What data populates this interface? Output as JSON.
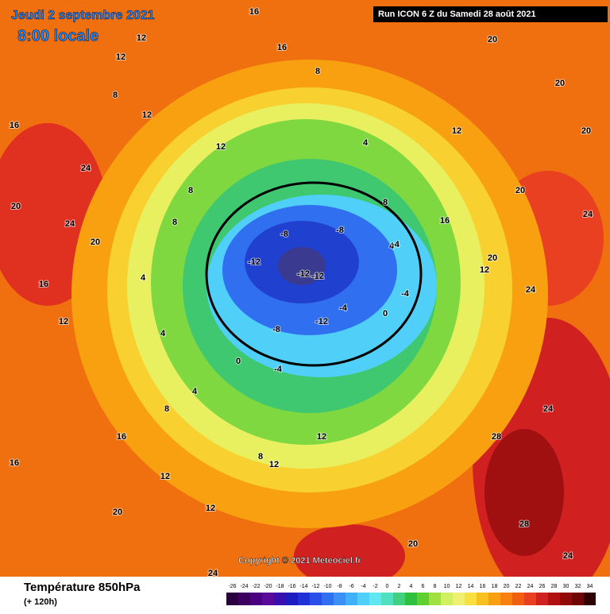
{
  "header": {
    "date": "Jeudi 2 septembre 2021",
    "time": "8:00 locale",
    "run": "Run ICON 6 Z du Samedi 28 août 2021"
  },
  "footer": {
    "title": "Température 850hPa",
    "lead": "(+ 120h)",
    "copyright": "Copyright © 2021 Meteociel.fr"
  },
  "legend": {
    "labels": [
      -26,
      -24,
      -22,
      -20,
      -18,
      -16,
      -14,
      -12,
      -10,
      -8,
      -6,
      -4,
      -2,
      0,
      2,
      4,
      6,
      8,
      10,
      12,
      14,
      16,
      18,
      20,
      22,
      24,
      26,
      28,
      30,
      32,
      34
    ],
    "colors": [
      "#2a0040",
      "#3c0060",
      "#4b0082",
      "#5a0a9a",
      "#3a0fb0",
      "#1c1cc0",
      "#1e32d8",
      "#2850e8",
      "#3070f0",
      "#3c90f5",
      "#40b0f8",
      "#50d0f8",
      "#60e8f0",
      "#50e0c0",
      "#40d080",
      "#30c040",
      "#60d030",
      "#a0e040",
      "#d0f060",
      "#f0f070",
      "#f8e040",
      "#f8c020",
      "#f8a010",
      "#f88010",
      "#f06010",
      "#e84020",
      "#d02020",
      "#b01010",
      "#900a0a",
      "#700505",
      "#300000"
    ]
  },
  "contour_labels": [
    20,
    20,
    20,
    24,
    24,
    24,
    28,
    28,
    24,
    20,
    24,
    20,
    16,
    16,
    12,
    12,
    12,
    12,
    8,
    8,
    4,
    4,
    4,
    8,
    8,
    8,
    12,
    12,
    16,
    16,
    12,
    12,
    20,
    24,
    20,
    24,
    16,
    16,
    12,
    8,
    8,
    4,
    4,
    0,
    -4,
    -8,
    -8,
    -12,
    -12,
    -12,
    -12,
    -4,
    0,
    -8,
    -4,
    -4,
    12,
    12,
    16,
    20,
    20
  ]
}
